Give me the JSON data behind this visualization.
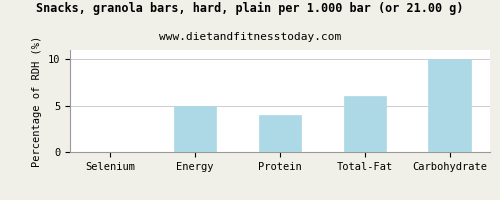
{
  "title": "Snacks, granola bars, hard, plain per 1.000 bar (or 21.00 g)",
  "subtitle": "www.dietandfitnesstoday.com",
  "categories": [
    "Selenium",
    "Energy",
    "Protein",
    "Total-Fat",
    "Carbohydrate"
  ],
  "values": [
    0,
    5.0,
    4.0,
    6.0,
    10.0
  ],
  "bar_color": "#add8e6",
  "bar_edge_color": "#add8e6",
  "ylabel": "Percentage of RDH (%)",
  "ylim": [
    0,
    11
  ],
  "yticks": [
    0,
    5,
    10
  ],
  "background_color": "#f0f0e8",
  "plot_bg_color": "#ffffff",
  "title_fontsize": 8.5,
  "subtitle_fontsize": 8.0,
  "ylabel_fontsize": 7.5,
  "tick_fontsize": 7.5,
  "grid_color": "#cccccc",
  "border_color": "#999999"
}
